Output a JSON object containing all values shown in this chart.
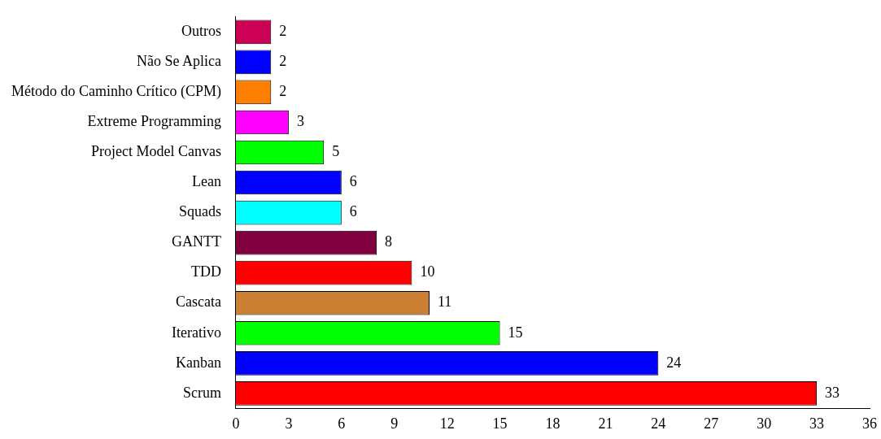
{
  "chart_data": {
    "type": "bar",
    "orientation": "horizontal",
    "categories": [
      "Outros",
      "Não Se Aplica",
      "Método do Caminho Crítico (CPM)",
      "Extreme Programming",
      "Project Model Canvas",
      "Lean",
      "Squads",
      "GANTT",
      "TDD",
      "Cascata",
      "Iterativo",
      "Kanban",
      "Scrum"
    ],
    "values": [
      2,
      2,
      2,
      3,
      5,
      6,
      6,
      8,
      10,
      11,
      15,
      24,
      33
    ],
    "colors": [
      "#cc0055",
      "#0000ff",
      "#ff8000",
      "#ff00ff",
      "#00ff00",
      "#0000ff",
      "#00ffff",
      "#800040",
      "#ff0000",
      "#cc8033",
      "#00ff00",
      "#0000ff",
      "#ff0000"
    ],
    "xlim": [
      0,
      36
    ],
    "xticks": [
      0,
      3,
      6,
      9,
      12,
      15,
      18,
      21,
      24,
      27,
      30,
      33,
      36
    ],
    "data_labels": true,
    "grid": false,
    "legend": false
  }
}
